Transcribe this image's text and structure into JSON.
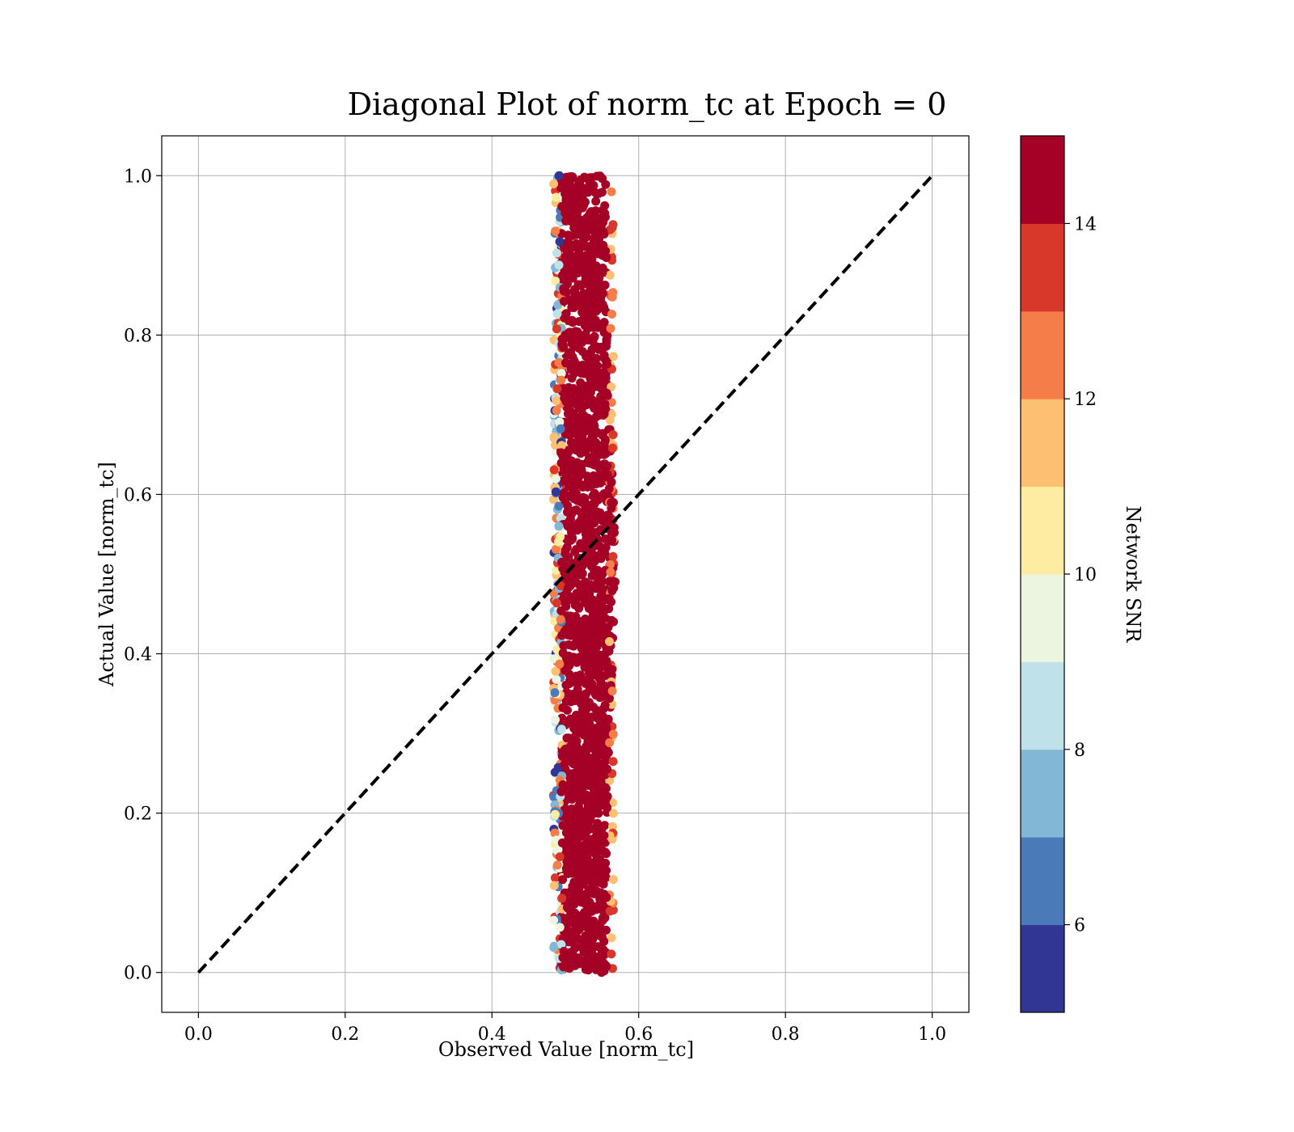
{
  "chart_data": {
    "type": "scatter",
    "title": "Diagonal Plot of norm_tc at Epoch = 0",
    "xlabel": "Observed Value [norm_tc]",
    "ylabel": "Actual Value [norm_tc]",
    "xlim": [
      -0.05,
      1.05
    ],
    "ylim": [
      -0.05,
      1.05
    ],
    "xticks": [
      0.0,
      0.2,
      0.4,
      0.6,
      0.8,
      1.0
    ],
    "yticks": [
      0.0,
      0.2,
      0.4,
      0.6,
      0.8,
      1.0
    ],
    "xtick_labels": [
      "0.0",
      "0.2",
      "0.4",
      "0.6",
      "0.8",
      "1.0"
    ],
    "ytick_labels": [
      "0.0",
      "0.2",
      "0.4",
      "0.6",
      "0.8",
      "1.0"
    ],
    "grid": true,
    "reference_line": {
      "x": [
        0.0,
        1.0
      ],
      "y": [
        0.0,
        1.0
      ],
      "style": "dashed",
      "color": "#000000"
    },
    "point_distribution": {
      "x_center": 0.525,
      "x_range_core": [
        0.49,
        0.56
      ],
      "x_range_outer": [
        0.48,
        0.57
      ],
      "y_range": [
        0.0,
        1.0
      ],
      "dominant_snr": 15
    },
    "colorbar": {
      "label": "Network SNR",
      "range": [
        5,
        15
      ],
      "ticks": [
        6,
        8,
        10,
        12,
        14
      ],
      "tick_labels": [
        "6",
        "8",
        "10",
        "12",
        "14"
      ],
      "bins": [
        {
          "from": 5,
          "to": 6,
          "color": "#313695"
        },
        {
          "from": 6,
          "to": 7,
          "color": "#4a7ab7"
        },
        {
          "from": 7,
          "to": 8,
          "color": "#82b7d6"
        },
        {
          "from": 8,
          "to": 9,
          "color": "#bfe2ea"
        },
        {
          "from": 9,
          "to": 10,
          "color": "#ebf5df"
        },
        {
          "from": 10,
          "to": 11,
          "color": "#fdeca2"
        },
        {
          "from": 11,
          "to": 12,
          "color": "#fdbf71"
        },
        {
          "from": 12,
          "to": 13,
          "color": "#f57d4a"
        },
        {
          "from": 13,
          "to": 14,
          "color": "#d8382a"
        },
        {
          "from": 14,
          "to": 15,
          "color": "#a50026"
        }
      ]
    }
  }
}
